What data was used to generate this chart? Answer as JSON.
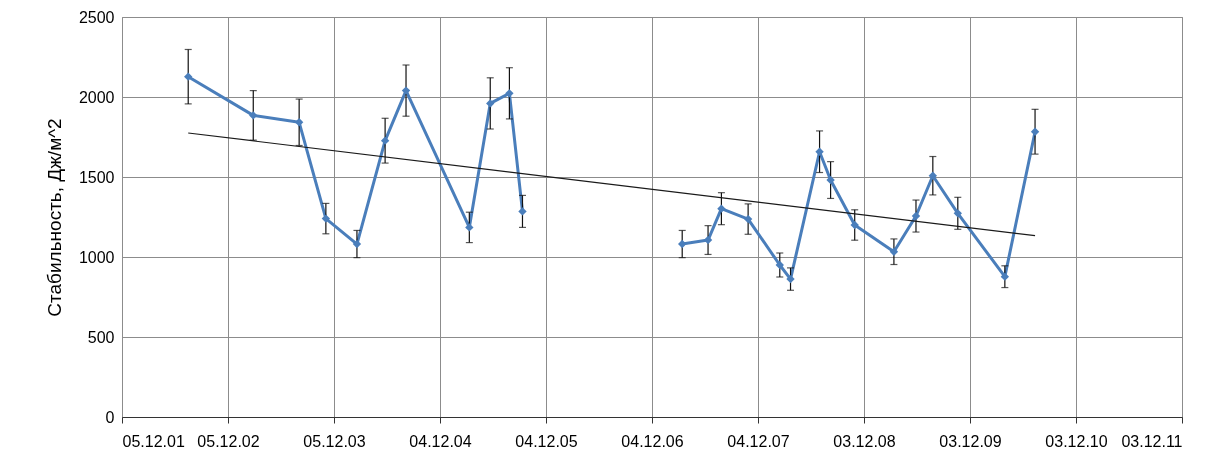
{
  "chart_data": {
    "type": "line",
    "ylabel": "Стабильность, Дж/м^2",
    "xlim": [
      "2001-12-05",
      "2011-12-03"
    ],
    "xticks": [
      {
        "value": "2001-12-05",
        "label": "05.12.01"
      },
      {
        "value": "2002-12-05",
        "label": "05.12.02"
      },
      {
        "value": "2003-12-05",
        "label": "05.12.03"
      },
      {
        "value": "2004-12-04",
        "label": "04.12.04"
      },
      {
        "value": "2005-12-04",
        "label": "04.12.05"
      },
      {
        "value": "2006-12-04",
        "label": "04.12.06"
      },
      {
        "value": "2007-12-04",
        "label": "04.12.07"
      },
      {
        "value": "2008-12-03",
        "label": "03.12.08"
      },
      {
        "value": "2009-12-03",
        "label": "03.12.09"
      },
      {
        "value": "2010-12-03",
        "label": "03.12.10"
      },
      {
        "value": "2011-12-03",
        "label": "03.12.11"
      }
    ],
    "ylim": [
      0,
      2500
    ],
    "yticks": [
      0,
      500,
      1000,
      1500,
      2000,
      2500
    ],
    "grid": true,
    "series": [
      {
        "color": "#4a7ebb",
        "marker": "diamond",
        "x": [
          "2002-07-21",
          "2003-03-02",
          "2003-08-07",
          "2003-11-07",
          "2004-02-22",
          "2004-05-29",
          "2004-08-09",
          "2005-03-15",
          "2005-05-26",
          "2005-07-31",
          "2005-09-14",
          "2006-06-01",
          "2007-03-18",
          "2007-06-15",
          "2007-07-31",
          "2007-10-31",
          "2008-02-17",
          "2008-03-25",
          "2008-07-03",
          "2008-08-10",
          "2008-11-01",
          "2009-03-16",
          "2009-05-31",
          "2009-07-28",
          "2009-10-22",
          "2010-04-02",
          "2010-07-15"
        ],
        "values": [
          2127,
          1885,
          1842,
          1240,
          1081,
          1727,
          2040,
          1185,
          1960,
          2023,
          1285,
          null,
          1081,
          1106,
          1302,
          1237,
          950,
          862,
          1658,
          1481,
          1200,
          1033,
          1256,
          1508,
          1273,
          877,
          1783
        ],
        "errors": [
          170,
          155,
          145,
          95,
          85,
          140,
          160,
          95,
          160,
          160,
          100,
          null,
          85,
          90,
          100,
          95,
          75,
          70,
          130,
          115,
          95,
          80,
          100,
          120,
          100,
          68,
          140
        ]
      },
      {
        "type": "line",
        "color": "#1a1a1a",
        "marker": "none",
        "x": [
          "2002-07-21",
          "2010-07-15"
        ],
        "values": [
          1775,
          1133
        ]
      }
    ]
  }
}
